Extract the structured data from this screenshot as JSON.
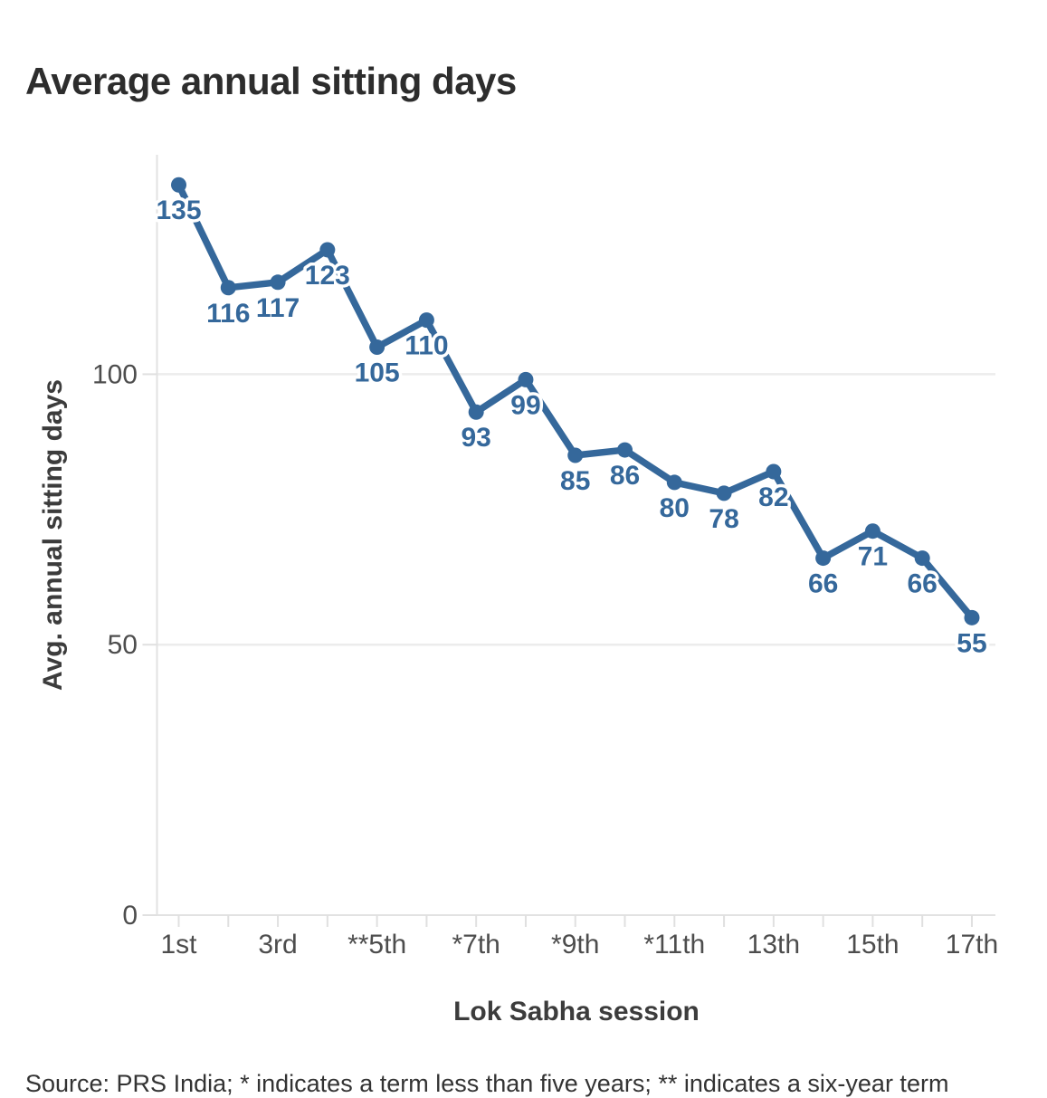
{
  "page": {
    "footnote": "Source: PRS India; * indicates a term less than five years; ** indicates a six-year term"
  },
  "chart_data": {
    "type": "line",
    "title": "Average annual sitting days",
    "xlabel": "Lok Sabha session",
    "ylabel": "Avg. annual sitting days",
    "values": [
      135,
      116,
      117,
      123,
      105,
      110,
      93,
      99,
      85,
      86,
      80,
      78,
      82,
      66,
      71,
      66,
      55
    ],
    "n_points": 17,
    "x_tick_labels": [
      "1st",
      "3rd",
      "**5th",
      "*7th",
      "*9th",
      "*11th",
      "13th",
      "15th",
      "17th"
    ],
    "x_tick_positions": [
      1,
      3,
      5,
      7,
      9,
      11,
      13,
      15,
      17
    ],
    "y_ticks": [
      0,
      50,
      100
    ],
    "ylim": [
      0,
      141
    ],
    "grid": "horizontal-only",
    "legend": "none",
    "show_point_labels": true,
    "colors": {
      "line": "#35689b",
      "point_label": "#35689b",
      "gridline": "#ececec",
      "axis_line": "#e2e2e2",
      "tick_mark": "#e0e0e0",
      "tick_text": "#4d4d4d",
      "title_text": "#2d2d2d",
      "axis_title_text": "#3c3c3c"
    }
  }
}
